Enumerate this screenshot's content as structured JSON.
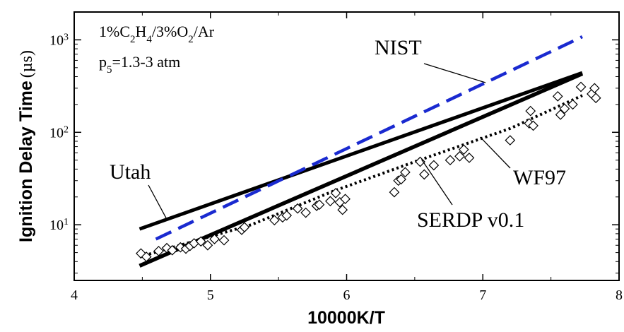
{
  "chart_data": {
    "type": "scatter",
    "xlabel": "10000K/T",
    "ylabel": "Ignition Delay Time",
    "ylabel_unit": "(µs)",
    "y_scale": "log",
    "xlim": [
      4,
      8
    ],
    "ylim": [
      2.5,
      2000
    ],
    "x_ticks": [
      4,
      5,
      6,
      7,
      8
    ],
    "y_ticks": [
      {
        "value": 10,
        "base": "10",
        "exp": "1"
      },
      {
        "value": 100,
        "base": "10",
        "exp": "2"
      },
      {
        "value": 1000,
        "base": "10",
        "exp": "3"
      }
    ],
    "conditions": {
      "mixture": {
        "p1": "1%C",
        "s1": "2",
        "p2": "H",
        "s2": "4",
        "p3": "/3%O",
        "s3": "2",
        "p4": "/Ar"
      },
      "pressure": {
        "p1": "p",
        "s1": "5",
        "p2": "=1.3-3 atm"
      }
    },
    "colors": {
      "nist": "#1a2ad0",
      "models": "#000000"
    },
    "experiments": {
      "marker": "diamond-open",
      "points": [
        [
          4.49,
          4.9
        ],
        [
          4.53,
          4.5
        ],
        [
          4.62,
          5.2
        ],
        [
          4.68,
          5.6
        ],
        [
          4.72,
          5.3
        ],
        [
          4.78,
          5.7
        ],
        [
          4.82,
          5.5
        ],
        [
          4.85,
          5.9
        ],
        [
          4.88,
          6.3
        ],
        [
          4.93,
          6.6
        ],
        [
          4.98,
          6.0
        ],
        [
          5.03,
          7.0
        ],
        [
          5.1,
          6.8
        ],
        [
          5.23,
          8.8
        ],
        [
          5.25,
          9.4
        ],
        [
          5.47,
          11.2
        ],
        [
          5.53,
          12.0
        ],
        [
          5.56,
          12.6
        ],
        [
          5.64,
          15.0
        ],
        [
          5.7,
          13.5
        ],
        [
          5.78,
          16.0
        ],
        [
          5.8,
          16.5
        ],
        [
          5.88,
          18.0
        ],
        [
          5.92,
          22.0
        ],
        [
          5.95,
          17.5
        ],
        [
          5.97,
          14.5
        ],
        [
          5.99,
          19.0
        ],
        [
          6.35,
          22.5
        ],
        [
          6.38,
          30.0
        ],
        [
          6.4,
          31.0
        ],
        [
          6.43,
          37.0
        ],
        [
          6.54,
          48.0
        ],
        [
          6.57,
          35.0
        ],
        [
          6.64,
          44.0
        ],
        [
          6.76,
          50.0
        ],
        [
          6.83,
          55.0
        ],
        [
          6.86,
          65.0
        ],
        [
          6.9,
          53.0
        ],
        [
          7.2,
          82.0
        ],
        [
          7.34,
          125.0
        ],
        [
          7.35,
          170.0
        ],
        [
          7.37,
          118.0
        ],
        [
          7.55,
          245.0
        ],
        [
          7.57,
          155.0
        ],
        [
          7.6,
          180.0
        ],
        [
          7.66,
          200.0
        ],
        [
          7.72,
          310.0
        ],
        [
          7.8,
          260.0
        ],
        [
          7.82,
          300.0
        ],
        [
          7.83,
          235.0
        ]
      ]
    },
    "series": [
      {
        "name": "Utah",
        "style": "solid",
        "x": [
          4.48,
          7.73
        ],
        "y": [
          9.0,
          440.0
        ]
      },
      {
        "name": "NIST",
        "style": "dashed",
        "x": [
          4.6,
          7.73
        ],
        "y": [
          7.0,
          1080.0
        ]
      },
      {
        "name": "WF97",
        "style": "solid",
        "x": [
          4.48,
          7.73
        ],
        "y": [
          3.6,
          430.0
        ]
      },
      {
        "name": "SERDP v0.1",
        "style": "dotted",
        "x": [
          4.48,
          5.3,
          5.9,
          6.5,
          7.2,
          7.73
        ],
        "y": [
          4.5,
          10.0,
          23.0,
          48.0,
          110.0,
          250.0
        ]
      }
    ],
    "annotations": [
      {
        "text": "NIST",
        "target_series": "NIST"
      },
      {
        "text": "Utah",
        "target_series": "Utah"
      },
      {
        "text": "WF97",
        "target_series": "WF97"
      },
      {
        "text": "SERDP v0.1",
        "target_series": "SERDP v0.1"
      }
    ]
  }
}
